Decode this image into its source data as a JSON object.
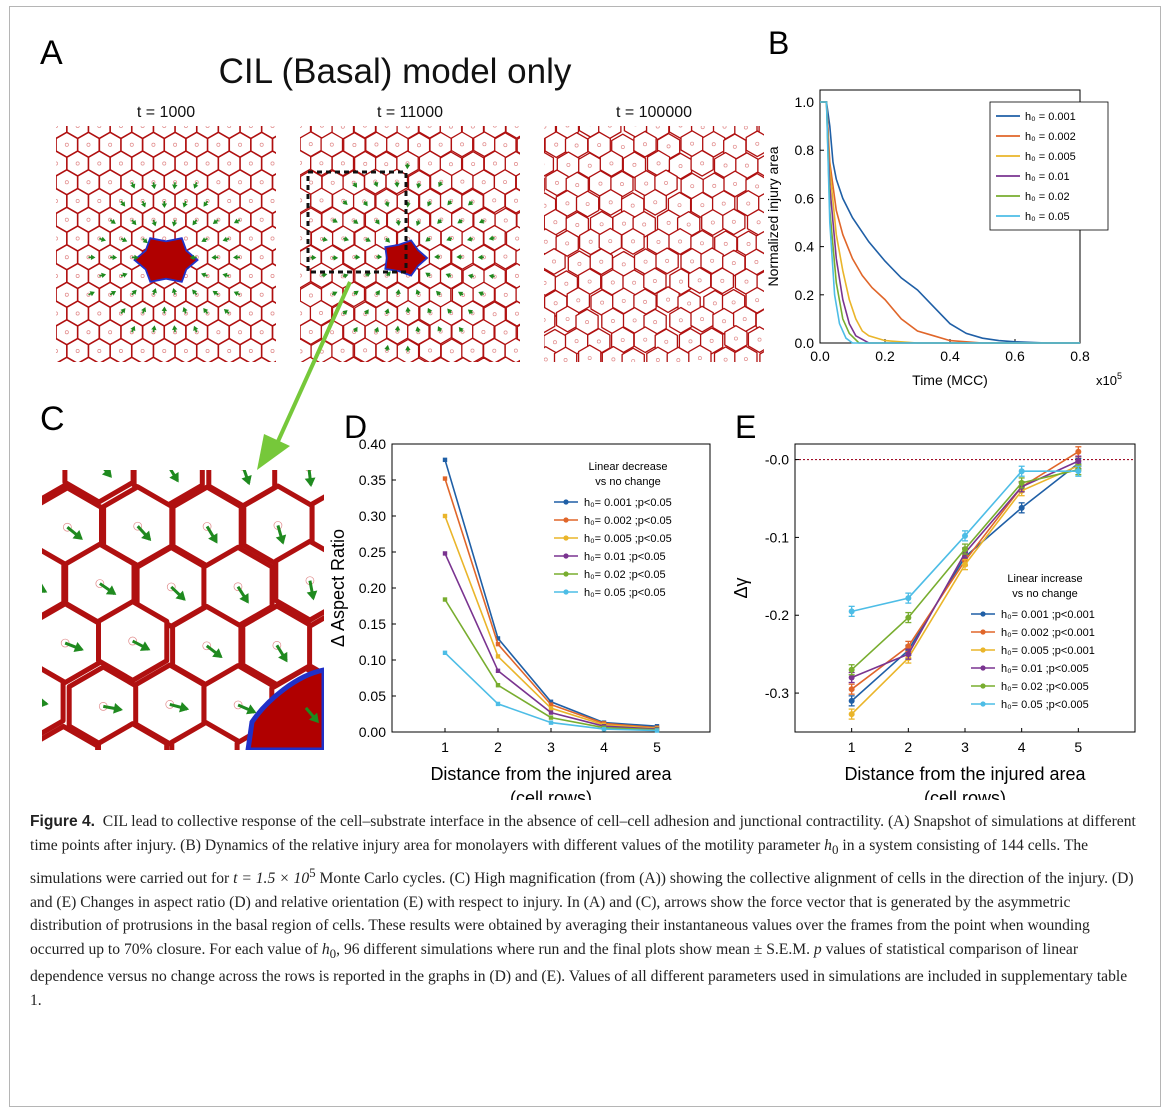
{
  "panel_A": {
    "letter": "A",
    "title": "CIL (Basal) model only",
    "snapshots": [
      "t = 1000",
      "t = 11000",
      "t = 100000"
    ]
  },
  "panel_C": {
    "letter": "C"
  },
  "colors": {
    "cell_border": "#b01010",
    "injury_fill": "#b00000",
    "injury_border": "#2030c8",
    "arrow": "#1f8a1f",
    "highlight_arrow": "#76c83a",
    "dashed_box": "#111111",
    "zero_line": "#a0102a"
  },
  "caption": {
    "label": "Figure 4.",
    "p1": "CIL lead to collective response of the cell–substrate interface in the absence of cell–cell adhesion and junctional contractility. (A) Snapshot of simulations at different time points after injury. (B) Dynamics of the relative injury area for monolayers with different values of the motility parameter ",
    "h0": "h",
    "h0sub": "0",
    "p2": " in a system consisting of 144 cells. The simulations were carried out for ",
    "t_eq": "t = 1.5 × 10",
    "t_exp": "5",
    "p3": " Monte Carlo cycles. (C) High magnification (from (A)) showing the collective alignment of cells in the direction of the injury. (D) and (E) Changes in aspect ratio (D) and relative orientation (E) with respect to injury. In (A) and (C), arrows show the force vector that is generated by the asymmetric distribution of protrusions in the basal region of cells. These results were obtained by averaging their instantaneous values over the frames from the point when wounding occurred up to 70% closure. For each value of ",
    "p4": ", 96 different simulations where run and the final plots show mean ± S.E.M. ",
    "p_italic": "p",
    "p5": " values of statistical comparison of linear dependence versus no change across the rows is reported in the graphs in (D) and (E). Values of all different parameters used in simulations are included in supplementary table 1."
  },
  "chart_data": [
    {
      "panel": "B",
      "type": "line",
      "ylabel": "Normalized injury area",
      "xlabel": "Time (MCC)",
      "x_multiplier_label": "x10",
      "x_multiplier_exp": "5",
      "xlim": [
        0,
        0.8
      ],
      "ylim": [
        0,
        1.05
      ],
      "xticks": [
        "0.0",
        "0.2",
        "0.4",
        "0.6",
        "0.8"
      ],
      "yticks": [
        "0.0",
        "0.2",
        "0.4",
        "0.6",
        "0.8",
        "1.0"
      ],
      "legend_position": "top-right",
      "series": [
        {
          "name": "h₀ = 0.001",
          "color": "#1f5fa6",
          "x": [
            0,
            0.02,
            0.03,
            0.04,
            0.05,
            0.07,
            0.1,
            0.15,
            0.2,
            0.25,
            0.3,
            0.35,
            0.4,
            0.45,
            0.5,
            0.55,
            0.6,
            0.7,
            0.8
          ],
          "y": [
            1.0,
            1.0,
            0.9,
            0.75,
            0.68,
            0.6,
            0.52,
            0.42,
            0.34,
            0.27,
            0.22,
            0.15,
            0.08,
            0.04,
            0.02,
            0.01,
            0.005,
            0.0,
            0.0
          ]
        },
        {
          "name": "h₀ = 0.002",
          "color": "#e0662a",
          "x": [
            0,
            0.02,
            0.03,
            0.05,
            0.07,
            0.1,
            0.13,
            0.16,
            0.2,
            0.25,
            0.3,
            0.35,
            0.4,
            0.5,
            0.8
          ],
          "y": [
            1.0,
            1.0,
            0.75,
            0.55,
            0.45,
            0.35,
            0.28,
            0.23,
            0.18,
            0.1,
            0.05,
            0.03,
            0.01,
            0.0,
            0.0
          ]
        },
        {
          "name": "h₀ = 0.005",
          "color": "#eab52a",
          "x": [
            0,
            0.02,
            0.03,
            0.05,
            0.07,
            0.09,
            0.11,
            0.13,
            0.15,
            0.2,
            0.3,
            0.8
          ],
          "y": [
            1.0,
            1.0,
            0.72,
            0.45,
            0.3,
            0.18,
            0.1,
            0.05,
            0.03,
            0.01,
            0.0,
            0.0
          ]
        },
        {
          "name": "h₀ = 0.01",
          "color": "#7a3490",
          "x": [
            0,
            0.02,
            0.03,
            0.05,
            0.07,
            0.09,
            0.11,
            0.15,
            0.8
          ],
          "y": [
            1.0,
            1.0,
            0.65,
            0.35,
            0.18,
            0.08,
            0.03,
            0.0,
            0.0
          ]
        },
        {
          "name": "h₀ = 0.02",
          "color": "#78ad2f",
          "x": [
            0,
            0.02,
            0.03,
            0.05,
            0.07,
            0.09,
            0.12,
            0.8
          ],
          "y": [
            1.0,
            1.0,
            0.55,
            0.25,
            0.1,
            0.04,
            0.0,
            0.0
          ]
        },
        {
          "name": "h₀ = 0.05",
          "color": "#4dbde6",
          "x": [
            0,
            0.02,
            0.03,
            0.045,
            0.06,
            0.08,
            0.1,
            0.8
          ],
          "y": [
            1.0,
            1.0,
            0.5,
            0.2,
            0.08,
            0.02,
            0.0,
            0.0
          ]
        }
      ]
    },
    {
      "panel": "D",
      "type": "line",
      "ylabel": "Δ Aspect Ratio",
      "xlabel": "Distance from the injured area",
      "xlabel2": "(cell rows)",
      "categories": [
        1,
        2,
        3,
        4,
        5
      ],
      "ylim": [
        0,
        0.4
      ],
      "yticks": [
        "0.00",
        "0.05",
        "0.10",
        "0.15",
        "0.20",
        "0.25",
        "0.30",
        "0.35",
        "0.40"
      ],
      "xticks": [
        "1",
        "2",
        "3",
        "4",
        "5"
      ],
      "legend_title": [
        "Linear decrease",
        "vs no change"
      ],
      "legend_position": "top-right",
      "series": [
        {
          "name": "h₀= 0.001 ;p<0.05",
          "color": "#1f5fa6",
          "values": [
            0.378,
            0.13,
            0.042,
            0.013,
            0.008
          ]
        },
        {
          "name": "h₀= 0.002 ;p<0.05",
          "color": "#e0662a",
          "values": [
            0.352,
            0.122,
            0.038,
            0.012,
            0.006
          ]
        },
        {
          "name": "h₀= 0.005 ;p<0.05",
          "color": "#eab52a",
          "values": [
            0.3,
            0.105,
            0.033,
            0.01,
            0.005
          ]
        },
        {
          "name": "h₀= 0.01 ;p<0.05",
          "color": "#7a3490",
          "values": [
            0.248,
            0.085,
            0.027,
            0.008,
            0.004
          ]
        },
        {
          "name": "h₀= 0.02 ;p<0.05",
          "color": "#78ad2f",
          "values": [
            0.184,
            0.065,
            0.02,
            0.006,
            0.003
          ]
        },
        {
          "name": "h₀= 0.05 ;p<0.05",
          "color": "#4dbde6",
          "values": [
            0.11,
            0.039,
            0.013,
            0.004,
            0.002
          ]
        }
      ]
    },
    {
      "panel": "E",
      "type": "line",
      "ylabel": "Δγ",
      "xlabel": "Distance from the injured area",
      "xlabel2": "(cell rows)",
      "categories": [
        1,
        2,
        3,
        4,
        5
      ],
      "ylim": [
        -0.35,
        0.02
      ],
      "yticks": [
        "-0.0",
        "-0.1",
        "-0.2",
        "-0.3"
      ],
      "xticks": [
        "1",
        "2",
        "3",
        "4",
        "5"
      ],
      "legend_title": [
        "Linear increase",
        "vs no change"
      ],
      "legend_position": "bottom-right",
      "series": [
        {
          "name": "h₀= 0.001 ;p<0.001",
          "color": "#1f5fa6",
          "values": [
            -0.31,
            -0.245,
            -0.125,
            -0.062,
            -0.005
          ]
        },
        {
          "name": "h₀= 0.002 ;p<0.001",
          "color": "#e0662a",
          "values": [
            -0.295,
            -0.24,
            -0.13,
            -0.035,
            0.01
          ]
        },
        {
          "name": "h₀= 0.005 ;p<0.001",
          "color": "#eab52a",
          "values": [
            -0.327,
            -0.255,
            -0.135,
            -0.04,
            -0.008
          ]
        },
        {
          "name": "h₀= 0.01 ;p<0.005",
          "color": "#7a3490",
          "values": [
            -0.28,
            -0.25,
            -0.12,
            -0.035,
            -0.002
          ]
        },
        {
          "name": "h₀= 0.02 ;p<0.005",
          "color": "#78ad2f",
          "values": [
            -0.27,
            -0.203,
            -0.115,
            -0.03,
            -0.013
          ]
        },
        {
          "name": "h₀= 0.05 ;p<0.005",
          "color": "#4dbde6",
          "values": [
            -0.195,
            -0.178,
            -0.098,
            -0.015,
            -0.015
          ]
        }
      ]
    }
  ]
}
